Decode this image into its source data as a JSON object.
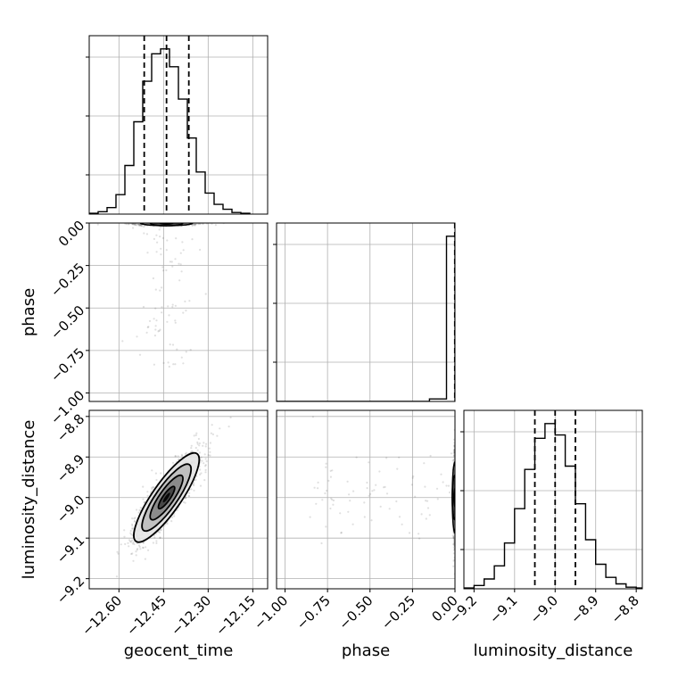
{
  "chart_data": {
    "type": "corner",
    "parameters": [
      "geocent_time",
      "phase",
      "luminosity_distance"
    ],
    "axis_labels": {
      "geocent_time": "geocent_time",
      "phase": "phase",
      "luminosity_distance": "luminosity_distance"
    },
    "ticks": {
      "geocent_time": [
        {
          "value": -12.6,
          "label": "−12.60"
        },
        {
          "value": -12.45,
          "label": "−12.45"
        },
        {
          "value": -12.3,
          "label": "−12.30"
        },
        {
          "value": -12.15,
          "label": "−12.15"
        }
      ],
      "phase": [
        {
          "value": -1.0,
          "label": "−1.00"
        },
        {
          "value": -0.75,
          "label": "−0.75"
        },
        {
          "value": -0.5,
          "label": "−0.50"
        },
        {
          "value": -0.25,
          "label": "−0.25"
        },
        {
          "value": 0.0,
          "label": "0.00"
        }
      ],
      "luminosity_distance": [
        {
          "value": -9.2,
          "label": "−9.2"
        },
        {
          "value": -9.1,
          "label": "−9.1"
        },
        {
          "value": -9.0,
          "label": "−9.0"
        },
        {
          "value": -8.9,
          "label": "−8.9"
        },
        {
          "value": -8.8,
          "label": "−8.8"
        }
      ]
    },
    "ranges": {
      "geocent_time": [
        -12.7,
        -12.1
      ],
      "phase": [
        -1.05,
        0.0
      ],
      "luminosity_distance": [
        -9.225,
        -8.785
      ]
    },
    "grid": true,
    "histograms": {
      "geocent_time": {
        "bin_edges": [
          -12.7,
          -12.67,
          -12.64,
          -12.61,
          -12.58,
          -12.55,
          -12.52,
          -12.49,
          -12.46,
          -12.43,
          -12.4,
          -12.37,
          -12.34,
          -12.31,
          -12.28,
          -12.25,
          -12.22,
          -12.19,
          -12.16
        ],
        "counts": [
          0.5,
          1.5,
          4,
          12,
          30,
          57,
          82,
          99,
          102,
          91,
          71,
          47,
          26,
          13,
          6,
          3,
          1,
          0.5
        ],
        "quantiles": [
          -12.515,
          -12.44,
          -12.365
        ]
      },
      "phase": {
        "bin_edges": [
          -1.05,
          -0.15,
          -0.05,
          0.0
        ],
        "counts": [
          0,
          1.5,
          100
        ],
        "quantiles": [
          -0.001,
          0.0,
          0.0
        ]
      },
      "luminosity_distance": {
        "bin_edges": [
          -9.225,
          -9.2,
          -9.175,
          -9.15,
          -9.125,
          -9.1,
          -9.075,
          -9.05,
          -9.025,
          -9.0,
          -8.975,
          -8.95,
          -8.925,
          -8.9,
          -8.875,
          -8.85,
          -8.825,
          -8.8,
          -8.785
        ],
        "counts": [
          0.5,
          2,
          6,
          14,
          28,
          49,
          73,
          92,
          101,
          94,
          75,
          52,
          30,
          15,
          7,
          3,
          1,
          0.5
        ],
        "quantiles": [
          -9.05,
          -9.0,
          -8.95
        ]
      }
    },
    "joint": {
      "geocent_time__luminosity_distance": {
        "mean": [
          -12.44,
          -9.0
        ],
        "std": [
          0.055,
          0.055
        ],
        "correlation": 0.85,
        "contour_levels_sigma": [
          0.5,
          1.0,
          1.5,
          2.0
        ]
      },
      "geocent_time__phase": {
        "mean": [
          -12.44,
          0.0
        ],
        "std": [
          0.055,
          0.006
        ]
      },
      "phase__luminosity_distance": {
        "mean": [
          0.0,
          -9.0
        ],
        "std": [
          0.004,
          0.055
        ]
      }
    },
    "legend": "none"
  }
}
